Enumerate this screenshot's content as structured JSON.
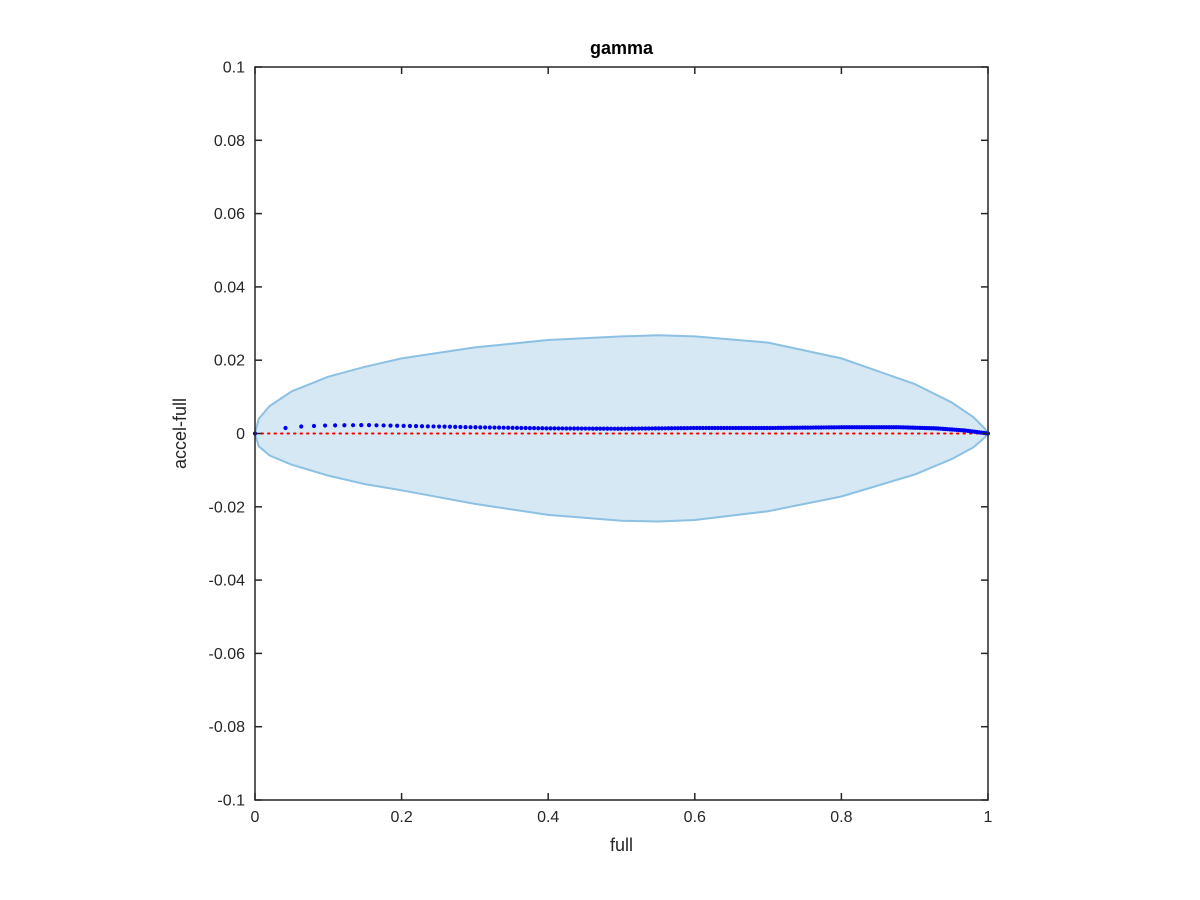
{
  "chart_data": {
    "type": "scatter",
    "title": "gamma",
    "xlabel": "full",
    "ylabel": "accel-full",
    "xlim": [
      0,
      1
    ],
    "ylim": [
      -0.1,
      0.1
    ],
    "xticks": [
      0,
      0.2,
      0.4,
      0.6,
      0.8,
      1
    ],
    "xtick_labels": [
      "0",
      "0.2",
      "0.4",
      "0.6",
      "0.8",
      "1"
    ],
    "yticks": [
      0.1,
      0.08,
      0.06,
      0.04,
      0.02,
      0,
      -0.02,
      -0.04,
      -0.06,
      -0.08,
      -0.1
    ],
    "ytick_labels": [
      "0.1",
      "0.08",
      "0.06",
      "0.04",
      "0.02",
      "0",
      "-0.02",
      "-0.04",
      "-0.06",
      "-0.08",
      "-0.1"
    ],
    "grid": false,
    "colors": {
      "band_fill": "#d6e8f4",
      "band_edge": "#8cc1e3",
      "points": "#0000ee",
      "reference": "#ff0000",
      "axes": "#262626"
    },
    "band": {
      "x": [
        0,
        0.005,
        0.02,
        0.05,
        0.1,
        0.15,
        0.2,
        0.3,
        0.4,
        0.5,
        0.55,
        0.6,
        0.7,
        0.8,
        0.9,
        0.95,
        0.98,
        0.995,
        1
      ],
      "upper": [
        0,
        0.004,
        0.0075,
        0.0115,
        0.0155,
        0.0182,
        0.0205,
        0.0235,
        0.0255,
        0.0265,
        0.0268,
        0.0265,
        0.0248,
        0.0205,
        0.0135,
        0.0085,
        0.0045,
        0.0015,
        0
      ],
      "lower": [
        0,
        -0.0035,
        -0.006,
        -0.0085,
        -0.0115,
        -0.0138,
        -0.0155,
        -0.0192,
        -0.0222,
        -0.0238,
        -0.024,
        -0.0236,
        -0.0212,
        -0.0172,
        -0.0112,
        -0.007,
        -0.0038,
        -0.0012,
        0
      ]
    },
    "series": [
      {
        "x": [
          0,
          0.05,
          0.1,
          0.15,
          0.2,
          0.3,
          0.4,
          0.5,
          0.6,
          0.7,
          0.8,
          0.88,
          0.93,
          0.97,
          1
        ],
        "y": [
          0,
          0.0018,
          0.0022,
          0.0023,
          0.0021,
          0.0017,
          0.0014,
          0.0013,
          0.0015,
          0.0015,
          0.0017,
          0.0017,
          0.0014,
          0.0008,
          0
        ]
      }
    ],
    "reference_line": {
      "y": 0
    }
  }
}
